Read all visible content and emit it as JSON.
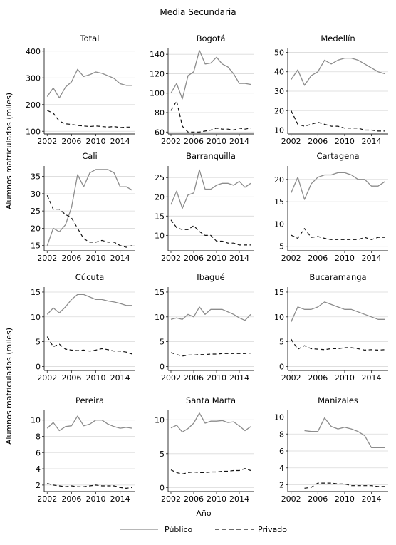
{
  "title": "Media Secundaria",
  "xlabel": "Año",
  "ylabel_top": "Alumnos matriculados (miles)",
  "ylabel_bottom": "Alumnos matriculados (miles)",
  "legend": {
    "publico": "Público",
    "privado": "Privado"
  },
  "colors": {
    "publico": "#8c8c8c",
    "privado": "#111111",
    "grid": "#d9d9d9",
    "axis": "#222222"
  },
  "chart_data": [
    {
      "type": "line",
      "title": "Total",
      "x": [
        2002,
        2003,
        2004,
        2005,
        2006,
        2007,
        2008,
        2009,
        2010,
        2011,
        2012,
        2013,
        2014,
        2015,
        2016
      ],
      "ylim": [
        90,
        410
      ],
      "yticks": [
        100,
        200,
        300,
        400
      ],
      "xticks": [
        2002,
        2006,
        2010,
        2014
      ],
      "series": [
        {
          "name": "Público",
          "values": [
            230,
            262,
            225,
            265,
            285,
            332,
            305,
            312,
            322,
            317,
            308,
            298,
            278,
            272,
            272
          ]
        },
        {
          "name": "Privado",
          "values": [
            178,
            168,
            138,
            128,
            126,
            122,
            120,
            118,
            120,
            118,
            116,
            118,
            114,
            116,
            116
          ]
        }
      ]
    },
    {
      "type": "line",
      "title": "Bogotá",
      "x": [
        2002,
        2003,
        2004,
        2005,
        2006,
        2007,
        2008,
        2009,
        2010,
        2011,
        2012,
        2013,
        2014,
        2015,
        2016
      ],
      "ylim": [
        58,
        146
      ],
      "yticks": [
        60,
        80,
        100,
        120,
        140
      ],
      "xticks": [
        2002,
        2006,
        2010,
        2014
      ],
      "series": [
        {
          "name": "Público",
          "values": [
            100,
            110,
            94,
            118,
            122,
            144,
            130,
            131,
            137,
            130,
            127,
            120,
            110,
            110,
            109
          ]
        },
        {
          "name": "Privado",
          "values": [
            82,
            92,
            66,
            60,
            60,
            60,
            61,
            62,
            64,
            63,
            63,
            62,
            64,
            63,
            64
          ]
        }
      ]
    },
    {
      "type": "line",
      "title": "Medellín",
      "x": [
        2002,
        2003,
        2004,
        2005,
        2006,
        2007,
        2008,
        2009,
        2010,
        2011,
        2012,
        2013,
        2014,
        2015,
        2016
      ],
      "ylim": [
        8,
        52
      ],
      "yticks": [
        10,
        20,
        30,
        40,
        50
      ],
      "xticks": [
        2002,
        2006,
        2010,
        2014
      ],
      "series": [
        {
          "name": "Público",
          "values": [
            36,
            41,
            33,
            38,
            40,
            46,
            44,
            46,
            47,
            47,
            46,
            44,
            42,
            40,
            39
          ]
        },
        {
          "name": "Privado",
          "values": [
            20,
            13,
            12,
            13,
            14,
            13,
            12,
            12,
            11,
            11,
            11,
            10,
            10,
            9.5,
            9.5
          ]
        }
      ]
    },
    {
      "type": "line",
      "title": "Cali",
      "x": [
        2002,
        2003,
        2004,
        2005,
        2006,
        2007,
        2008,
        2009,
        2010,
        2011,
        2012,
        2013,
        2014,
        2015,
        2016
      ],
      "ylim": [
        13.5,
        38
      ],
      "yticks": [
        15,
        20,
        25,
        30,
        35
      ],
      "xticks": [
        2002,
        2006,
        2010,
        2014
      ],
      "series": [
        {
          "name": "Público",
          "values": [
            15,
            20,
            19,
            21,
            26,
            35.5,
            32,
            36,
            37,
            37,
            37,
            36,
            32,
            32,
            31
          ]
        },
        {
          "name": "Privado",
          "values": [
            29.5,
            25.5,
            25.5,
            24,
            23,
            20,
            17,
            16,
            16,
            16.5,
            16,
            16,
            15,
            14.5,
            15
          ]
        }
      ]
    },
    {
      "type": "line",
      "title": "Barranquilla",
      "x": [
        2002,
        2003,
        2004,
        2005,
        2006,
        2007,
        2008,
        2009,
        2010,
        2011,
        2012,
        2013,
        2014,
        2015,
        2016
      ],
      "ylim": [
        6,
        28
      ],
      "yticks": [
        10,
        15,
        20,
        25
      ],
      "xticks": [
        2002,
        2006,
        2010,
        2014
      ],
      "series": [
        {
          "name": "Público",
          "values": [
            18,
            21.5,
            17,
            20.5,
            21,
            27,
            22,
            22,
            23,
            23.5,
            23.5,
            23,
            24,
            22.5,
            23.5
          ]
        },
        {
          "name": "Privado",
          "values": [
            14,
            12,
            11.5,
            11.5,
            12.5,
            11,
            10,
            10,
            8.5,
            8.5,
            8,
            8,
            7.5,
            7.5,
            7.5
          ]
        }
      ]
    },
    {
      "type": "line",
      "title": "Cartagena",
      "x": [
        2002,
        2003,
        2004,
        2005,
        2006,
        2007,
        2008,
        2009,
        2010,
        2011,
        2012,
        2013,
        2014,
        2015,
        2016
      ],
      "ylim": [
        4,
        23
      ],
      "yticks": [
        5,
        10,
        15,
        20
      ],
      "xticks": [
        2002,
        2006,
        2010,
        2014
      ],
      "series": [
        {
          "name": "Público",
          "values": [
            17,
            20.5,
            15.5,
            19,
            20.5,
            21,
            21,
            21.5,
            21.5,
            21,
            20,
            20,
            18.5,
            18.5,
            19.5
          ]
        },
        {
          "name": "Privado",
          "values": [
            7.5,
            6.8,
            9,
            7,
            7.2,
            6.8,
            6.5,
            6.5,
            6.5,
            6.5,
            6.5,
            7,
            6.5,
            7,
            7
          ]
        }
      ]
    },
    {
      "type": "line",
      "title": "Cúcuta",
      "x": [
        2002,
        2003,
        2004,
        2005,
        2006,
        2007,
        2008,
        2009,
        2010,
        2011,
        2012,
        2013,
        2014,
        2015,
        2016
      ],
      "ylim": [
        -0.8,
        16
      ],
      "yticks": [
        0,
        5,
        10,
        15
      ],
      "xticks": [
        2002,
        2006,
        2010,
        2014
      ],
      "series": [
        {
          "name": "Público",
          "values": [
            10.5,
            11.8,
            10.8,
            12,
            13.5,
            14.5,
            14.5,
            14,
            13.5,
            13.5,
            13.2,
            13,
            12.7,
            12.3,
            12.3
          ]
        },
        {
          "name": "Privado",
          "values": [
            6,
            4,
            4.5,
            3.5,
            3.3,
            3.2,
            3.3,
            3.1,
            3.3,
            3.6,
            3.4,
            3.1,
            3.1,
            2.9,
            2.5
          ]
        }
      ]
    },
    {
      "type": "line",
      "title": "Ibagué",
      "x": [
        2002,
        2003,
        2004,
        2005,
        2006,
        2007,
        2008,
        2009,
        2010,
        2011,
        2012,
        2013,
        2014,
        2015,
        2016
      ],
      "ylim": [
        -0.8,
        16
      ],
      "yticks": [
        0,
        5,
        10,
        15
      ],
      "xticks": [
        2002,
        2006,
        2010,
        2014
      ],
      "series": [
        {
          "name": "Público",
          "values": [
            9.5,
            9.8,
            9.5,
            10.5,
            10,
            12,
            10.5,
            11.5,
            11.5,
            11.5,
            11,
            10.5,
            9.8,
            9.3,
            10.5
          ]
        },
        {
          "name": "Privado",
          "values": [
            2.8,
            2.4,
            2.1,
            2.3,
            2.3,
            2.4,
            2.4,
            2.5,
            2.5,
            2.6,
            2.6,
            2.6,
            2.6,
            2.6,
            2.7
          ]
        }
      ]
    },
    {
      "type": "line",
      "title": "Bucaramanga",
      "x": [
        2002,
        2003,
        2004,
        2005,
        2006,
        2007,
        2008,
        2009,
        2010,
        2011,
        2012,
        2013,
        2014,
        2015,
        2016
      ],
      "ylim": [
        -0.8,
        16
      ],
      "yticks": [
        0,
        5,
        10,
        15
      ],
      "xticks": [
        2002,
        2006,
        2010,
        2014
      ],
      "series": [
        {
          "name": "Público",
          "values": [
            9,
            12,
            11.5,
            11.5,
            12,
            13,
            12.5,
            12,
            11.5,
            11.5,
            11,
            10.5,
            10,
            9.5,
            9.5
          ]
        },
        {
          "name": "Privado",
          "values": [
            5.5,
            3.5,
            4.2,
            3.6,
            3.5,
            3.4,
            3.6,
            3.6,
            3.8,
            3.8,
            3.6,
            3.3,
            3.4,
            3.3,
            3.4
          ]
        }
      ]
    },
    {
      "type": "line",
      "title": "Pereira",
      "x": [
        2002,
        2003,
        2004,
        2005,
        2006,
        2007,
        2008,
        2009,
        2010,
        2011,
        2012,
        2013,
        2014,
        2015,
        2016
      ],
      "ylim": [
        1.2,
        11.2
      ],
      "yticks": [
        2,
        4,
        6,
        8,
        10
      ],
      "xticks": [
        2002,
        2006,
        2010,
        2014
      ],
      "series": [
        {
          "name": "Público",
          "values": [
            9,
            9.7,
            8.7,
            9.2,
            9.3,
            10.5,
            9.3,
            9.5,
            10,
            10,
            9.5,
            9.2,
            9,
            9.1,
            9
          ]
        },
        {
          "name": "Privado",
          "values": [
            2.2,
            2,
            1.9,
            1.8,
            1.9,
            1.8,
            1.8,
            1.9,
            2,
            1.9,
            1.9,
            1.9,
            1.7,
            1.6,
            1.7
          ]
        }
      ]
    },
    {
      "type": "line",
      "title": "Santa Marta",
      "x": [
        2002,
        2003,
        2004,
        2005,
        2006,
        2007,
        2008,
        2009,
        2010,
        2011,
        2012,
        2013,
        2014,
        2015,
        2016
      ],
      "ylim": [
        -0.6,
        11.4
      ],
      "yticks": [
        0,
        5,
        10
      ],
      "xticks": [
        2002,
        2006,
        2010,
        2014
      ],
      "series": [
        {
          "name": "Público",
          "values": [
            8.8,
            9.2,
            8.2,
            8.7,
            9.5,
            11,
            9.5,
            9.8,
            9.8,
            9.9,
            9.6,
            9.7,
            9.1,
            8.4,
            9
          ]
        },
        {
          "name": "Privado",
          "values": [
            2.6,
            2.2,
            2,
            2.2,
            2.3,
            2.2,
            2.2,
            2.3,
            2.3,
            2.4,
            2.4,
            2.5,
            2.5,
            2.8,
            2.5
          ]
        }
      ]
    },
    {
      "type": "line",
      "title": "Manizales",
      "x": [
        2002,
        2003,
        2004,
        2005,
        2006,
        2007,
        2008,
        2009,
        2010,
        2011,
        2012,
        2013,
        2014,
        2015,
        2016
      ],
      "ylim": [
        1.2,
        10.8
      ],
      "yticks": [
        2,
        4,
        6,
        8,
        10
      ],
      "xticks": [
        2002,
        2006,
        2010,
        2014
      ],
      "series": [
        {
          "name": "Público",
          "values": [
            null,
            null,
            8.4,
            8.3,
            8.3,
            9.9,
            8.9,
            8.6,
            8.8,
            8.6,
            8.3,
            7.8,
            6.4,
            6.4,
            6.4
          ]
        },
        {
          "name": "Privado",
          "values": [
            null,
            null,
            1.6,
            1.7,
            2.2,
            2.2,
            2.2,
            2.1,
            2.1,
            1.9,
            1.9,
            1.9,
            1.9,
            1.8,
            1.8
          ]
        }
      ]
    }
  ]
}
